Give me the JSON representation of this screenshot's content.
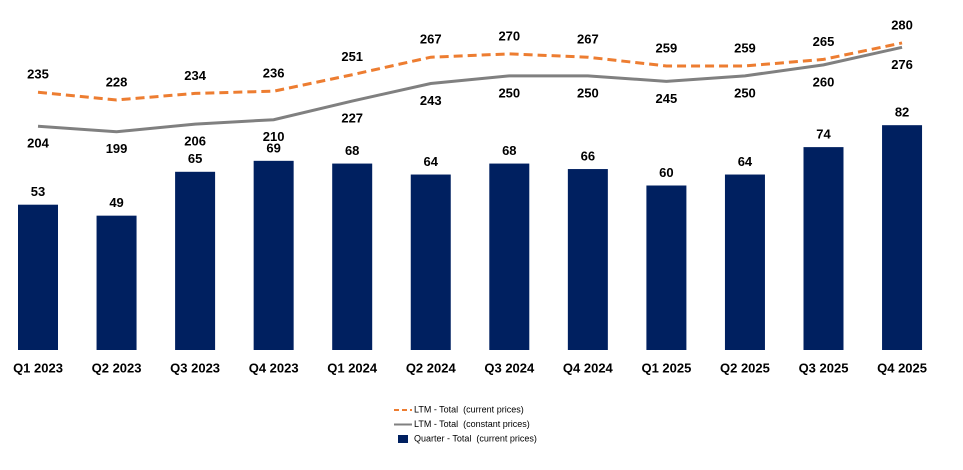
{
  "chart_data": {
    "type": "combo",
    "categories": [
      "Q1 2023",
      "Q2 2023",
      "Q3 2023",
      "Q4 2023",
      "Q1 2024",
      "Q2 2024",
      "Q3 2024",
      "Q4 2024",
      "Q1 2025",
      "Q2 2025",
      "Q3 2025",
      "Q4 2025"
    ],
    "ylim": [
      0,
      120
    ],
    "y2lim": [
      0,
      300
    ],
    "series": [
      {
        "name": "LTM - Total  (current prices)",
        "type": "line",
        "axis": "y2",
        "dashed": true,
        "label_side": "above",
        "color": "#ED7D31",
        "values": [
          235,
          228,
          234,
          236,
          251,
          267,
          270,
          267,
          259,
          259,
          265,
          280
        ]
      },
      {
        "name": "LTM - Total  (constant prices)",
        "type": "line",
        "axis": "y2",
        "dashed": false,
        "label_side": "below",
        "color": "#808080",
        "values": [
          204,
          199,
          206,
          210,
          227,
          243,
          250,
          250,
          245,
          250,
          260,
          276
        ]
      },
      {
        "name": "Quarter - Total  (current prices)",
        "type": "bar",
        "color": "#002060",
        "values": [
          53,
          49,
          65,
          69,
          68,
          64,
          68,
          66,
          60,
          64,
          74,
          82
        ]
      }
    ]
  }
}
